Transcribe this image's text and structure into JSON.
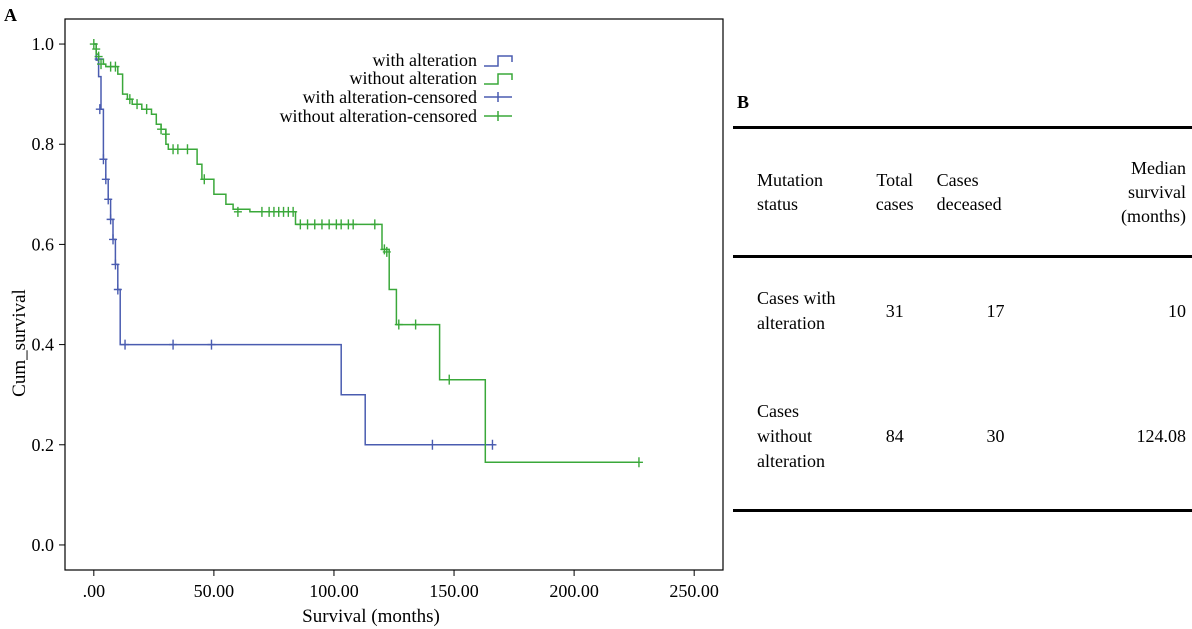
{
  "panels": {
    "a_label": "A",
    "b_label": "B"
  },
  "chart_data": {
    "type": "line",
    "subtype": "kaplan-meier-survival",
    "xlabel": "Survival (months)",
    "ylabel": "Cum_survival",
    "xlim": [
      -12,
      262
    ],
    "ylim": [
      -0.05,
      1.05
    ],
    "x_ticks": [
      0,
      50,
      100,
      150,
      200,
      250
    ],
    "x_tick_labels": [
      ".00",
      "50.00",
      "100.00",
      "150.00",
      "200.00",
      "250.00"
    ],
    "y_ticks": [
      0,
      0.2,
      0.4,
      0.6,
      0.8,
      1.0
    ],
    "y_tick_labels": [
      "0.0",
      "0.2",
      "0.4",
      "0.6",
      "0.8",
      "1.0"
    ],
    "grid": false,
    "legend_position": "top-right",
    "legend": [
      "with alteration",
      "without alteration",
      "with alteration-censored",
      "without alteration-censored"
    ],
    "colors": {
      "with": "#4a5cb0",
      "without": "#3aa83a"
    },
    "series": [
      {
        "name": "with alteration",
        "color": "#4a5cb0",
        "steps": [
          [
            0,
            1.0
          ],
          [
            1,
            0.968
          ],
          [
            2,
            0.935
          ],
          [
            3,
            0.87
          ],
          [
            4,
            0.77
          ],
          [
            5,
            0.73
          ],
          [
            6,
            0.69
          ],
          [
            7,
            0.65
          ],
          [
            8,
            0.61
          ],
          [
            9,
            0.56
          ],
          [
            10,
            0.51
          ],
          [
            11,
            0.4
          ],
          [
            103,
            0.3
          ],
          [
            113,
            0.2
          ],
          [
            167,
            0.2
          ]
        ],
        "censored": [
          [
            2,
            0.97
          ],
          [
            2.5,
            0.87
          ],
          [
            4,
            0.77
          ],
          [
            5,
            0.73
          ],
          [
            6,
            0.69
          ],
          [
            7,
            0.65
          ],
          [
            8,
            0.61
          ],
          [
            9,
            0.56
          ],
          [
            10,
            0.51
          ],
          [
            13,
            0.4
          ],
          [
            33,
            0.4
          ],
          [
            49,
            0.4
          ],
          [
            141,
            0.2
          ],
          [
            166,
            0.2
          ]
        ]
      },
      {
        "name": "without alteration",
        "color": "#3aa83a",
        "steps": [
          [
            0,
            1.0
          ],
          [
            1,
            0.98
          ],
          [
            2,
            0.97
          ],
          [
            4,
            0.96
          ],
          [
            5,
            0.955
          ],
          [
            10,
            0.94
          ],
          [
            12,
            0.9
          ],
          [
            14,
            0.89
          ],
          [
            16,
            0.88
          ],
          [
            20,
            0.87
          ],
          [
            24,
            0.86
          ],
          [
            26,
            0.84
          ],
          [
            28,
            0.83
          ],
          [
            30,
            0.8
          ],
          [
            31,
            0.79
          ],
          [
            43,
            0.76
          ],
          [
            45,
            0.73
          ],
          [
            50,
            0.7
          ],
          [
            55,
            0.68
          ],
          [
            58,
            0.67
          ],
          [
            65,
            0.665
          ],
          [
            84,
            0.64
          ],
          [
            120,
            0.59
          ],
          [
            123,
            0.51
          ],
          [
            126,
            0.44
          ],
          [
            144,
            0.33
          ],
          [
            163,
            0.165
          ],
          [
            227,
            0.165
          ]
        ],
        "censored": [
          [
            0,
            1.0
          ],
          [
            1,
            0.99
          ],
          [
            2,
            0.975
          ],
          [
            3,
            0.96
          ],
          [
            7,
            0.955
          ],
          [
            9,
            0.955
          ],
          [
            15,
            0.89
          ],
          [
            18,
            0.88
          ],
          [
            22,
            0.87
          ],
          [
            28,
            0.83
          ],
          [
            30,
            0.82
          ],
          [
            33,
            0.79
          ],
          [
            35,
            0.79
          ],
          [
            39,
            0.79
          ],
          [
            46,
            0.73
          ],
          [
            60,
            0.665
          ],
          [
            70,
            0.665
          ],
          [
            73,
            0.665
          ],
          [
            75,
            0.665
          ],
          [
            77,
            0.665
          ],
          [
            79,
            0.665
          ],
          [
            81,
            0.665
          ],
          [
            83,
            0.665
          ],
          [
            86,
            0.64
          ],
          [
            89,
            0.64
          ],
          [
            92,
            0.64
          ],
          [
            95,
            0.64
          ],
          [
            98,
            0.64
          ],
          [
            101,
            0.64
          ],
          [
            103,
            0.64
          ],
          [
            106,
            0.64
          ],
          [
            108,
            0.64
          ],
          [
            117,
            0.64
          ],
          [
            121,
            0.59
          ],
          [
            122,
            0.585
          ],
          [
            127,
            0.44
          ],
          [
            134,
            0.44
          ],
          [
            148,
            0.33
          ],
          [
            227,
            0.165
          ]
        ]
      }
    ]
  },
  "table": {
    "headers": {
      "mutation_status": [
        "Mutation",
        "status"
      ],
      "total_cases": [
        "Total",
        "cases"
      ],
      "cases_deceased": [
        "Cases",
        "deceased"
      ],
      "median_survival": [
        "Median",
        "survival",
        "(months)"
      ]
    },
    "rows": [
      {
        "status": [
          "Cases with",
          "alteration"
        ],
        "total": "31",
        "deceased": "17",
        "median": "10"
      },
      {
        "status": [
          "Cases",
          "without",
          "alteration"
        ],
        "total": "84",
        "deceased": "30",
        "median": "124.08"
      }
    ]
  }
}
